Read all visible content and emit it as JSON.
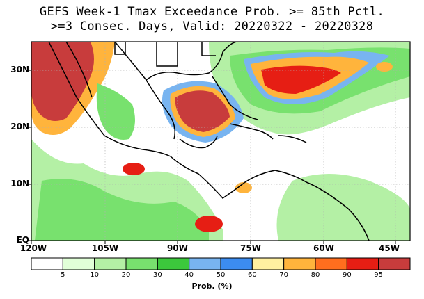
{
  "title": {
    "line1": "GEFS Week-1 Tmax Exceedance Prob. >= 85th Pctl.",
    "line2": ">=3 Consec. Days, Valid: 20220322 - 20220328"
  },
  "map": {
    "lat_labels": [
      "30N",
      "20N",
      "10N",
      "EQ"
    ],
    "lon_labels": [
      "120W",
      "105W",
      "90W",
      "75W",
      "60W",
      "45W"
    ],
    "extent": {
      "lon_min": -120,
      "lon_max": -43,
      "lat_min": 0,
      "lat_max": 35
    },
    "grid": "dotted"
  },
  "colorbar": {
    "title": "Prob. (%)",
    "tick_labels": [
      "5",
      "10",
      "20",
      "30",
      "40",
      "50",
      "60",
      "70",
      "80",
      "90",
      "95"
    ],
    "colors": [
      "#ffffff",
      "#e1ffd8",
      "#b4f0a5",
      "#78e16e",
      "#3cc83c",
      "#78b4f0",
      "#3c8cf0",
      "#fff0a0",
      "#ffb43c",
      "#ff6e1e",
      "#e61e14",
      "#c83c3c"
    ]
  }
}
